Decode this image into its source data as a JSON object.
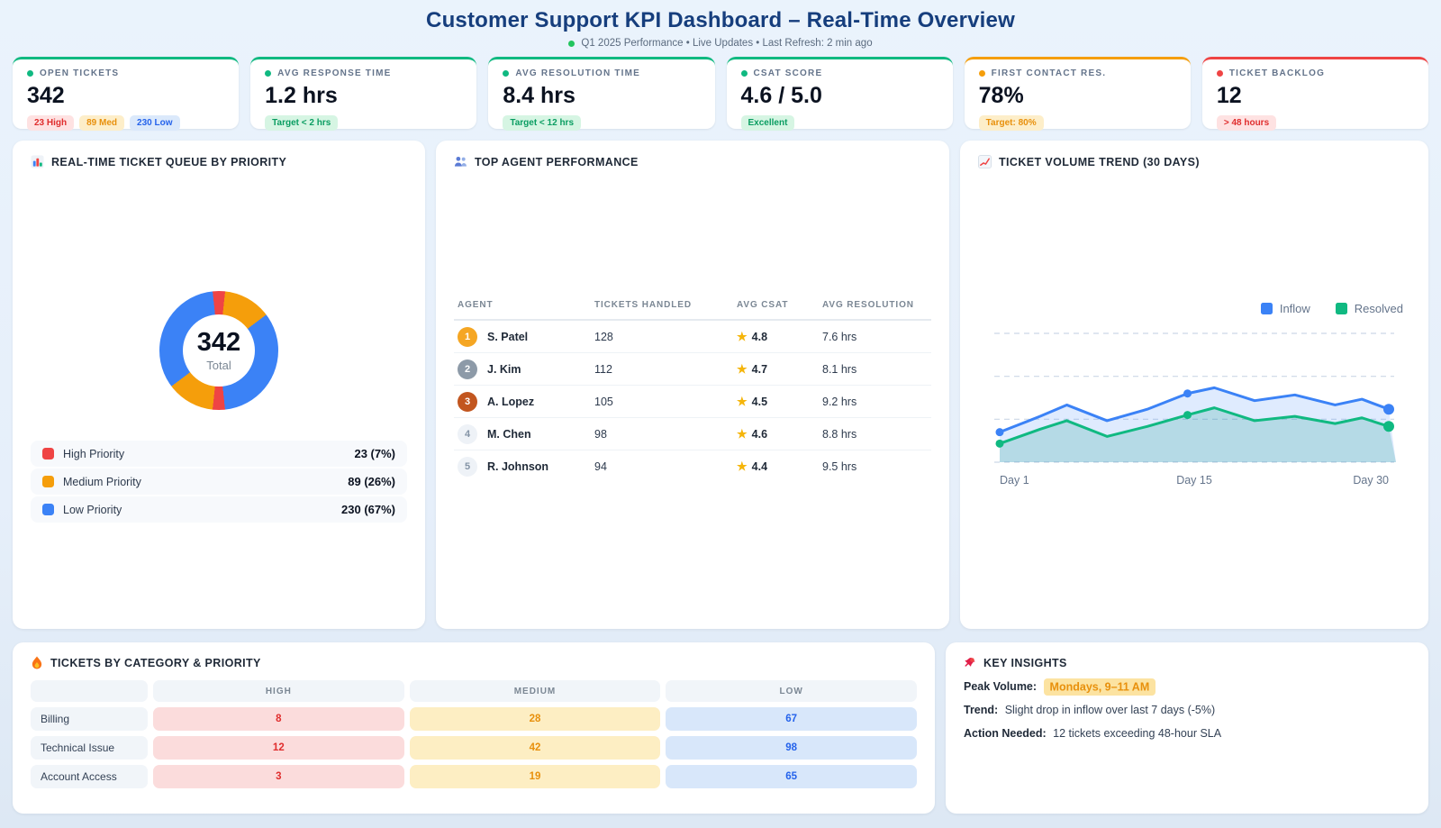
{
  "header": {
    "title": "Customer Support KPI Dashboard – Real-Time Overview",
    "subtitle": "Q1 2025 Performance • Live Updates • Last Refresh: 2 min ago"
  },
  "colors": {
    "brand_blue": "#163e7d",
    "green": "#10b981",
    "amber": "#f59e0b",
    "red": "#ef4444",
    "blue": "#3b82f6",
    "text_gray": "#64748b"
  },
  "kpis": [
    {
      "label": "OPEN TICKETS",
      "value": "342",
      "badges": [
        "23 High",
        "89 Med",
        "230 Low"
      ]
    },
    {
      "label": "AVG RESPONSE TIME",
      "value": "1.2 hrs",
      "badges": [
        "Target < 2 hrs"
      ]
    },
    {
      "label": "AVG RESOLUTION TIME",
      "value": "8.4 hrs",
      "badges": [
        "Target < 12 hrs"
      ]
    },
    {
      "label": "CSAT SCORE",
      "value": "4.6 / 5.0",
      "badges": [
        "Excellent"
      ]
    },
    {
      "label": "FIRST CONTACT RES.",
      "value": "78%",
      "badges": [
        "Target: 80%"
      ]
    },
    {
      "label": "TICKET BACKLOG",
      "value": "12",
      "badges": [
        "> 48 hours"
      ]
    }
  ],
  "queue_panel": {
    "title": "REAL-TIME TICKET QUEUE BY PRIORITY",
    "center_value": "342",
    "center_label": "Total",
    "legend": [
      {
        "label": "High Priority",
        "value_text": "23 (7%)"
      },
      {
        "label": "Medium Priority",
        "value_text": "89 (26%)"
      },
      {
        "label": "Low Priority",
        "value_text": "230 (67%)"
      }
    ]
  },
  "agents_panel": {
    "title": "TOP AGENT PERFORMANCE",
    "columns": [
      "AGENT",
      "TICKETS HANDLED",
      "AVG CSAT",
      "AVG RESOLUTION"
    ],
    "rows": [
      {
        "rank": "1",
        "name": "S. Patel",
        "tickets": "128",
        "csat": "4.8",
        "resolution": "7.6 hrs"
      },
      {
        "rank": "2",
        "name": "J. Kim",
        "tickets": "112",
        "csat": "4.7",
        "resolution": "8.1 hrs"
      },
      {
        "rank": "3",
        "name": "A. Lopez",
        "tickets": "105",
        "csat": "4.5",
        "resolution": "9.2 hrs"
      },
      {
        "rank": "4",
        "name": "M. Chen",
        "tickets": "98",
        "csat": "4.6",
        "resolution": "8.8 hrs"
      },
      {
        "rank": "5",
        "name": "R. Johnson",
        "tickets": "94",
        "csat": "4.4",
        "resolution": "9.5 hrs"
      }
    ]
  },
  "trend_panel": {
    "title": "TICKET VOLUME TREND (30 DAYS)",
    "legend": [
      {
        "label": "Inflow",
        "color": "#3b82f6"
      },
      {
        "label": "Resolved",
        "color": "#10b981"
      }
    ],
    "x_labels": [
      "Day 1",
      "Day 15",
      "Day 30"
    ]
  },
  "category_panel": {
    "title": "TICKETS BY CATEGORY & PRIORITY",
    "columns": [
      "HIGH",
      "MEDIUM",
      "LOW"
    ],
    "rows": [
      {
        "category": "Billing",
        "high": "8",
        "medium": "28",
        "low": "67"
      },
      {
        "category": "Technical Issue",
        "high": "12",
        "medium": "42",
        "low": "98"
      },
      {
        "category": "Account Access",
        "high": "3",
        "medium": "19",
        "low": "65"
      }
    ]
  },
  "insights_panel": {
    "title": "KEY INSIGHTS",
    "items": [
      {
        "label": "Peak Volume:",
        "text": "Mondays, 9–11 AM",
        "highlight": true
      },
      {
        "label": "Trend:",
        "text": "Slight drop in inflow over last 7 days (-5%)",
        "highlight": false
      },
      {
        "label": "Action Needed:",
        "text": "12 tickets exceeding 48-hour SLA",
        "highlight": false
      }
    ]
  },
  "chart_data": [
    {
      "type": "pie",
      "style": "donut",
      "title": "Real-Time Ticket Queue by Priority",
      "labels": [
        "High Priority",
        "Medium Priority",
        "Low Priority"
      ],
      "values": [
        23,
        89,
        230
      ],
      "percents": [
        7,
        26,
        67
      ],
      "total": 342,
      "colors": [
        "#ef4444",
        "#f59e0b",
        "#3b82f6"
      ],
      "center_text": "342 Total"
    },
    {
      "type": "area",
      "title": "Ticket Volume Trend (30 Days)",
      "x": [
        1,
        4,
        6,
        9,
        12,
        15,
        17,
        20,
        23,
        26,
        28,
        30
      ],
      "series": [
        {
          "name": "Inflow",
          "color": "#3b82f6",
          "values": [
            21,
            32,
            40,
            29,
            37,
            48,
            52,
            43,
            47,
            40,
            44,
            37
          ]
        },
        {
          "name": "Resolved",
          "color": "#10b981",
          "values": [
            13,
            23,
            29,
            18,
            25,
            33,
            38,
            29,
            32,
            27,
            31,
            25
          ]
        }
      ],
      "marker_indices": [
        0,
        5,
        11
      ],
      "xlabel_ticks": [
        "Day 1",
        "Day 15",
        "Day 30"
      ],
      "ylim": [
        0,
        90
      ],
      "grid": "dashed-horizontal",
      "legend_position": "top-right"
    },
    {
      "type": "table",
      "title": "Tickets by Category & Priority",
      "categories": [
        "Billing",
        "Technical Issue",
        "Account Access"
      ],
      "columns": [
        "High",
        "Medium",
        "Low"
      ],
      "values": [
        [
          8,
          28,
          67
        ],
        [
          12,
          42,
          98
        ],
        [
          3,
          19,
          65
        ]
      ]
    }
  ]
}
